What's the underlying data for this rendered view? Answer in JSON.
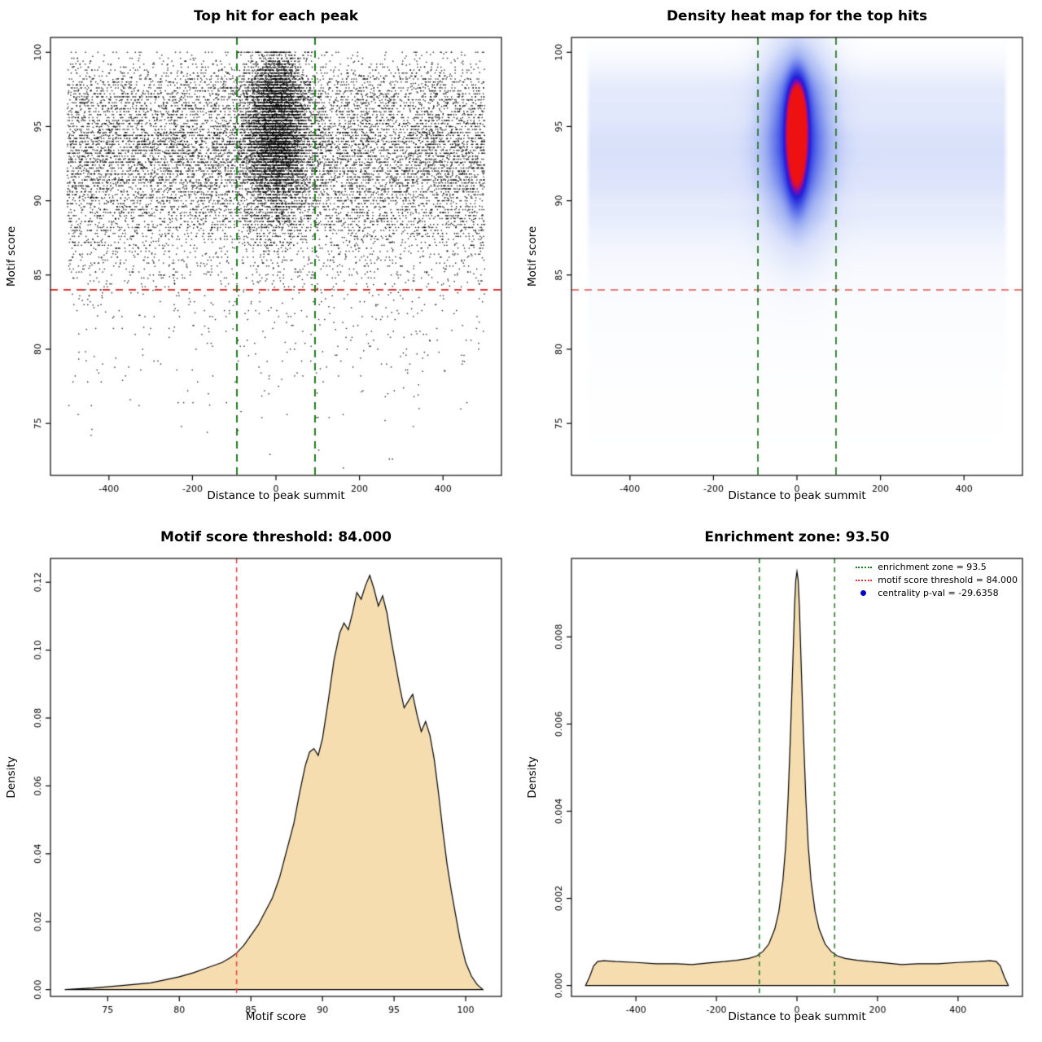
{
  "figure": {
    "background": "#ffffff",
    "accent_red": "#e33131",
    "accent_green": "#1e7a1e",
    "fill_tan": "#f6ddb0"
  },
  "chart_data": [
    {
      "type": "scatter",
      "title": "Top hit for each peak",
      "xlabel": "Distance to peak summit",
      "ylabel": "Motif score",
      "xlim": [
        -540,
        540
      ],
      "ylim": [
        71.5,
        101
      ],
      "xticks": {
        "values": [
          -400,
          -200,
          0,
          200,
          400
        ],
        "labels": [
          "-400",
          "-200",
          "0",
          "200",
          "400"
        ]
      },
      "yticks": {
        "values": [
          75,
          80,
          85,
          90,
          95,
          100
        ],
        "labels": [
          "75",
          "80",
          "85",
          "90",
          "95",
          "100"
        ]
      },
      "point_color": "#000000",
      "distribution": {
        "seed": 42,
        "n_background": 12000,
        "n_central": 6000,
        "x_uniform_range": [
          -500,
          500
        ],
        "central_x_sd": 38,
        "score_cap": 100,
        "quantize_step": 0.2,
        "quantize_frac": 0.75
      },
      "hlines": [
        {
          "y": 84,
          "color": "#e33131",
          "dash": [
            9,
            7
          ],
          "width": 2
        }
      ],
      "vlines": [
        {
          "x": -93.5,
          "color": "#1e7a1e",
          "dash": [
            9,
            7
          ],
          "width": 2
        },
        {
          "x": 93.5,
          "color": "#1e7a1e",
          "dash": [
            9,
            7
          ],
          "width": 2
        }
      ]
    },
    {
      "type": "heatmap",
      "title": "Density heat map for the top hits",
      "xlabel": "Distance to peak summit",
      "ylabel": "Motif score",
      "xlim": [
        -540,
        540
      ],
      "ylim": [
        71.5,
        101
      ],
      "xticks": {
        "values": [
          -400,
          -200,
          0,
          200,
          400
        ],
        "labels": [
          "-400",
          "-200",
          "0",
          "200",
          "400"
        ]
      },
      "yticks": {
        "values": [
          75,
          80,
          85,
          90,
          95,
          100
        ],
        "labels": [
          "75",
          "80",
          "85",
          "90",
          "95",
          "100"
        ]
      },
      "heat": {
        "core": [
          {
            "y": 95.8,
            "sy": 1.7,
            "amp": 1.0
          },
          {
            "y": 93.2,
            "sy": 2.1,
            "amp": 0.95
          }
        ],
        "core_sx": 15,
        "core_amp": 0.85,
        "halo": {
          "y": 94.3,
          "sy": 3.8,
          "sx": 50,
          "amp": 0.5
        },
        "band_weight": 0.1,
        "x_extent": 505,
        "gamma": 0.75,
        "colormap": [
          [
            0.0,
            "#ffffff"
          ],
          [
            0.06,
            "#f3f6fd"
          ],
          [
            0.18,
            "#d8e0fa"
          ],
          [
            0.35,
            "#9fb0f2"
          ],
          [
            0.55,
            "#4d5fe8"
          ],
          [
            0.72,
            "#1f1fd8"
          ],
          [
            0.82,
            "#7a0bb8"
          ],
          [
            0.92,
            "#d40f3f"
          ],
          [
            1.0,
            "#ee1111"
          ]
        ]
      },
      "hlines": [
        {
          "y": 84,
          "color": "#e86060",
          "dash": [
            9,
            7
          ],
          "width": 1.8
        }
      ],
      "vlines": [
        {
          "x": -93.5,
          "color": "#2a7a2a",
          "dash": [
            9,
            7
          ],
          "width": 1.8
        },
        {
          "x": 93.5,
          "color": "#2a7a2a",
          "dash": [
            9,
            7
          ],
          "width": 1.8
        }
      ]
    },
    {
      "type": "area",
      "title": "Motif score threshold: 84.000",
      "xlabel": "Motif score",
      "ylabel": "Density",
      "xlim": [
        71,
        102.5
      ],
      "ylim": [
        -0.002,
        0.127
      ],
      "xticks": {
        "values": [
          75,
          80,
          85,
          90,
          95,
          100
        ],
        "labels": [
          "75",
          "80",
          "85",
          "90",
          "95",
          "100"
        ]
      },
      "yticks": {
        "values": [
          0.0,
          0.02,
          0.04,
          0.06,
          0.08,
          0.1,
          0.12
        ],
        "labels": [
          "0.00",
          "0.02",
          "0.04",
          "0.06",
          "0.08",
          "0.10",
          "0.12"
        ]
      },
      "fill": "#f6ddb0",
      "curve": [
        [
          72,
          0
        ],
        [
          74,
          0.0005
        ],
        [
          76,
          0.0012
        ],
        [
          78,
          0.002
        ],
        [
          80,
          0.0038
        ],
        [
          81,
          0.005
        ],
        [
          82,
          0.0065
        ],
        [
          83,
          0.008
        ],
        [
          83.6,
          0.0095
        ],
        [
          84,
          0.0108
        ],
        [
          84.5,
          0.013
        ],
        [
          85,
          0.016
        ],
        [
          85.5,
          0.019
        ],
        [
          86,
          0.023
        ],
        [
          86.5,
          0.027
        ],
        [
          87,
          0.033
        ],
        [
          87.5,
          0.041
        ],
        [
          88,
          0.049
        ],
        [
          88.4,
          0.058
        ],
        [
          88.8,
          0.066
        ],
        [
          89.1,
          0.07
        ],
        [
          89.4,
          0.071
        ],
        [
          89.7,
          0.069
        ],
        [
          90,
          0.074
        ],
        [
          90.4,
          0.085
        ],
        [
          90.8,
          0.097
        ],
        [
          91.2,
          0.105
        ],
        [
          91.5,
          0.108
        ],
        [
          91.8,
          0.106
        ],
        [
          92.1,
          0.111
        ],
        [
          92.4,
          0.117
        ],
        [
          92.7,
          0.115
        ],
        [
          93,
          0.119
        ],
        [
          93.3,
          0.122
        ],
        [
          93.6,
          0.118
        ],
        [
          93.9,
          0.113
        ],
        [
          94.2,
          0.116
        ],
        [
          94.5,
          0.111
        ],
        [
          94.8,
          0.103
        ],
        [
          95.1,
          0.096
        ],
        [
          95.4,
          0.089
        ],
        [
          95.7,
          0.083
        ],
        [
          96,
          0.085
        ],
        [
          96.3,
          0.087
        ],
        [
          96.6,
          0.081
        ],
        [
          96.9,
          0.076
        ],
        [
          97.2,
          0.079
        ],
        [
          97.5,
          0.075
        ],
        [
          97.8,
          0.068
        ],
        [
          98.1,
          0.058
        ],
        [
          98.4,
          0.047
        ],
        [
          98.7,
          0.037
        ],
        [
          99,
          0.029
        ],
        [
          99.3,
          0.022
        ],
        [
          99.6,
          0.015
        ],
        [
          100,
          0.008
        ],
        [
          100.4,
          0.004
        ],
        [
          100.8,
          0.0015
        ],
        [
          101.2,
          0
        ]
      ],
      "vlines": [
        {
          "x": 84,
          "color": "#e64545",
          "dash": [
            6,
            5
          ],
          "width": 1.6
        }
      ]
    },
    {
      "type": "area",
      "title": "Enrichment zone: 93.50",
      "xlabel": "Distance to peak summit",
      "ylabel": "Density",
      "xlim": [
        -560,
        560
      ],
      "ylim": [
        -0.00025,
        0.0098
      ],
      "xticks": {
        "values": [
          -400,
          -200,
          0,
          200,
          400
        ],
        "labels": [
          "-400",
          "-200",
          "0",
          "200",
          "400"
        ]
      },
      "yticks": {
        "values": [
          0.0,
          0.002,
          0.004,
          0.006,
          0.008
        ],
        "labels": [
          "0.000",
          "0.002",
          "0.004",
          "0.006",
          "0.008"
        ]
      },
      "fill": "#f6ddb0",
      "curve": [
        [
          -525,
          0
        ],
        [
          -515,
          0.0002
        ],
        [
          -505,
          0.00045
        ],
        [
          -495,
          0.00055
        ],
        [
          -480,
          0.00057
        ],
        [
          -450,
          0.00055
        ],
        [
          -400,
          0.00053
        ],
        [
          -350,
          0.0005
        ],
        [
          -300,
          0.0005
        ],
        [
          -260,
          0.00048
        ],
        [
          -220,
          0.00052
        ],
        [
          -180,
          0.00055
        ],
        [
          -150,
          0.00058
        ],
        [
          -120,
          0.00062
        ],
        [
          -100,
          0.00068
        ],
        [
          -85,
          0.00078
        ],
        [
          -70,
          0.00095
        ],
        [
          -55,
          0.0013
        ],
        [
          -45,
          0.0017
        ],
        [
          -35,
          0.0024
        ],
        [
          -28,
          0.0032
        ],
        [
          -22,
          0.0043
        ],
        [
          -16,
          0.0058
        ],
        [
          -10,
          0.0075
        ],
        [
          -6,
          0.0087
        ],
        [
          -3,
          0.0093
        ],
        [
          0,
          0.0095
        ],
        [
          3,
          0.0093
        ],
        [
          6,
          0.0087
        ],
        [
          10,
          0.0075
        ],
        [
          16,
          0.0058
        ],
        [
          22,
          0.0043
        ],
        [
          28,
          0.0032
        ],
        [
          35,
          0.0024
        ],
        [
          45,
          0.0017
        ],
        [
          55,
          0.0013
        ],
        [
          70,
          0.00095
        ],
        [
          85,
          0.00078
        ],
        [
          100,
          0.00068
        ],
        [
          120,
          0.00062
        ],
        [
          150,
          0.00058
        ],
        [
          180,
          0.00055
        ],
        [
          220,
          0.00052
        ],
        [
          260,
          0.00048
        ],
        [
          300,
          0.0005
        ],
        [
          350,
          0.0005
        ],
        [
          400,
          0.00053
        ],
        [
          450,
          0.00055
        ],
        [
          480,
          0.00057
        ],
        [
          495,
          0.00055
        ],
        [
          505,
          0.00045
        ],
        [
          515,
          0.0002
        ],
        [
          525,
          0
        ]
      ],
      "vlines": [
        {
          "x": -93.5,
          "color": "#2a7a2a",
          "dash": [
            6,
            5
          ],
          "width": 1.6
        },
        {
          "x": 93.5,
          "color": "#2a7a2a",
          "dash": [
            6,
            5
          ],
          "width": 1.6
        }
      ],
      "legend": [
        {
          "marker": "line",
          "color": "#1e7a1e",
          "label": "enrichment zone = 93.5"
        },
        {
          "marker": "line",
          "color": "#e33131",
          "label": "motif score threshold = 84.000"
        },
        {
          "marker": "point",
          "color": "#0000cd",
          "label": "centrality p-val = -29.6358"
        }
      ]
    }
  ]
}
